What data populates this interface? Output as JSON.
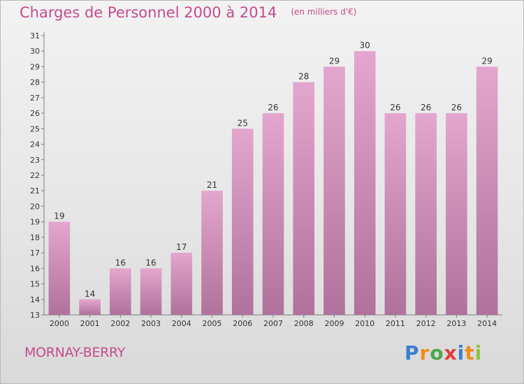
{
  "chart_data": {
    "type": "bar",
    "title": "Charges de Personnel 2000 à 2014",
    "unit": "(en milliers d'€)",
    "categories": [
      "2000",
      "2001",
      "2002",
      "2003",
      "2004",
      "2005",
      "2006",
      "2007",
      "2008",
      "2009",
      "2010",
      "2011",
      "2012",
      "2013",
      "2014"
    ],
    "values": [
      19,
      14,
      16,
      16,
      17,
      21,
      25,
      26,
      28,
      29,
      30,
      26,
      26,
      26,
      29
    ],
    "ylim": [
      13,
      31
    ],
    "yticks": [
      13,
      14,
      15,
      16,
      17,
      18,
      19,
      20,
      21,
      22,
      23,
      24,
      25,
      26,
      27,
      28,
      29,
      30,
      31
    ],
    "grid": false,
    "bar_color_top": "#e3a6ce",
    "bar_color_bottom": "#b0719c"
  },
  "commune": "MORNAY-BERRY",
  "logo": {
    "letters": [
      "P",
      "r",
      "o",
      "x",
      "i",
      "t",
      "i"
    ],
    "colors": [
      "#3a7fd0",
      "#f08a1c",
      "#4aa84a",
      "#e33a3a",
      "#3a7fd0",
      "#f08a1c",
      "#8bc43f"
    ]
  }
}
